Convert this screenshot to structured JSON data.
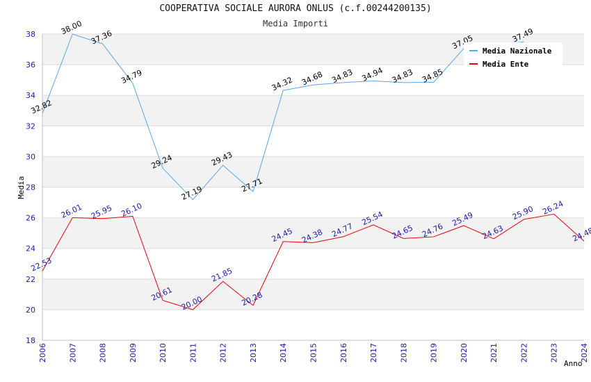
{
  "chart_data": {
    "type": "line",
    "title": "COOPERATIVA SOCIALE AURORA ONLUS (c.f.00244200135)",
    "subtitle": "Media Importi",
    "xlabel": "Anno",
    "ylabel": "Media",
    "ylim": [
      18,
      38
    ],
    "yticks": [
      18,
      20,
      22,
      24,
      26,
      28,
      30,
      32,
      34,
      36,
      38
    ],
    "categories": [
      "2006",
      "2007",
      "2008",
      "2009",
      "2010",
      "2011",
      "2012",
      "2013",
      "2014",
      "2015",
      "2016",
      "2017",
      "2018",
      "2019",
      "2020",
      "2021",
      "2022",
      "2023",
      "2024"
    ],
    "grid": true,
    "legend_position": "top-right",
    "series": [
      {
        "name": "Media Nazionale",
        "color": "#5aa5e8",
        "label_color": "#000000",
        "values": [
          32.82,
          38.0,
          37.36,
          34.79,
          29.24,
          27.19,
          29.43,
          27.71,
          34.32,
          34.68,
          34.83,
          34.94,
          34.83,
          34.85,
          37.05,
          null,
          37.49,
          null,
          null
        ],
        "labels": [
          "32.82",
          "38.00",
          "37.36",
          "34.79",
          "29.24",
          "27.19",
          "29.43",
          "27.71",
          "34.32",
          "34.68",
          "34.83",
          "34.94",
          "34.83",
          "34.85",
          "37.05",
          "",
          "37.49",
          "",
          ""
        ]
      },
      {
        "name": "Media Ente",
        "color": "#e8000e",
        "label_color": "#1a1aa8",
        "values": [
          22.53,
          26.01,
          25.95,
          26.1,
          20.61,
          20.0,
          21.85,
          20.28,
          24.45,
          24.38,
          24.77,
          25.54,
          24.65,
          24.76,
          25.49,
          24.63,
          25.9,
          26.24,
          24.48
        ],
        "labels": [
          "22.53",
          "26.01",
          "25.95",
          "26.10",
          "20.61",
          "20.00",
          "21.85",
          "20.28",
          "24.45",
          "24.38",
          "24.77",
          "25.54",
          "24.65",
          "24.76",
          "25.49",
          "24.63",
          "25.90",
          "26.24",
          "24.48"
        ]
      }
    ]
  }
}
